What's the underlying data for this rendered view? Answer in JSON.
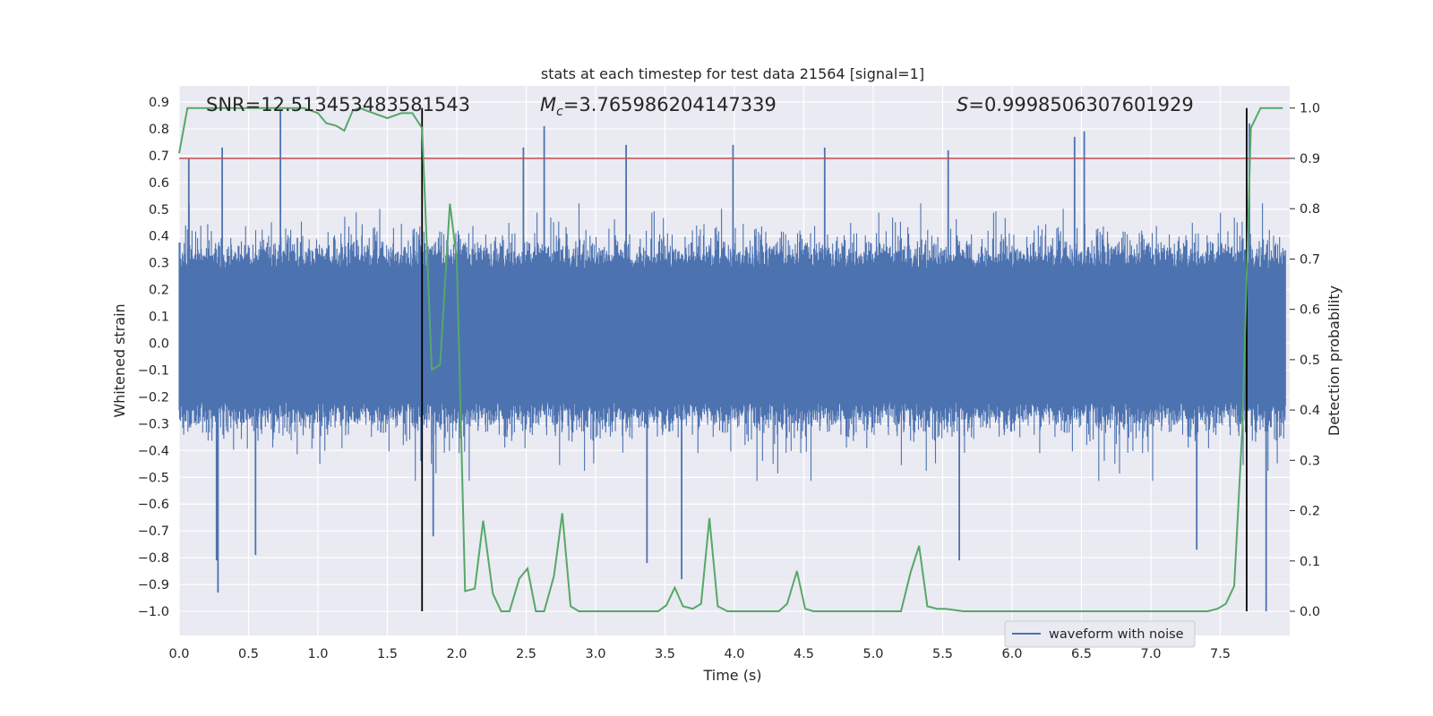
{
  "chart_data": {
    "type": "line",
    "title": "stats at each timestep for test data 21564 [signal=1]",
    "xlabel": "Time (s)",
    "ylabel": "Whitened strain",
    "y2label": "Detection probability",
    "xlim": [
      0.0,
      8.0
    ],
    "ylim": [
      -1.09,
      0.96
    ],
    "y2lim": [
      -0.048,
      1.044
    ],
    "xticks": [
      "0.0",
      "0.5",
      "1.0",
      "1.5",
      "2.0",
      "2.5",
      "3.0",
      "3.5",
      "4.0",
      "4.5",
      "5.0",
      "5.5",
      "6.0",
      "6.5",
      "7.0",
      "7.5"
    ],
    "yticks": [
      "0.9",
      "0.8",
      "0.7",
      "0.6",
      "0.5",
      "0.4",
      "0.3",
      "0.2",
      "0.1",
      "0.0",
      "-0.1",
      "-0.2",
      "-0.3",
      "-0.4",
      "-0.5",
      "-0.6",
      "-0.7",
      "-0.8",
      "-0.9",
      "-1.0"
    ],
    "y2ticks": [
      "1.0",
      "0.9",
      "0.8",
      "0.7",
      "0.6",
      "0.5",
      "0.4",
      "0.3",
      "0.2",
      "0.1",
      "0.0"
    ],
    "annotations": {
      "snr_text": "SNR=12.513453483581543",
      "mc_symbol": "M",
      "mc_sub": "c",
      "mc_value": "=3.765986204147339",
      "s_symbol": "S",
      "s_value": "=0.9998506307601929"
    },
    "threshold": {
      "value": 0.9,
      "axis": "y2",
      "color": "#c44e52"
    },
    "vlines": [
      1.75,
      7.69
    ],
    "series": [
      {
        "name": "waveform with noise",
        "axis": "y",
        "color": "#4c72b0",
        "kind": "dense noise waveform",
        "approx_band": [
          -0.45,
          0.55
        ],
        "notable_peaks": [
          {
            "x": 0.07,
            "y": 0.69
          },
          {
            "x": 0.31,
            "y": 0.73
          },
          {
            "x": 0.73,
            "y": 0.87
          },
          {
            "x": 2.63,
            "y": 0.81
          },
          {
            "x": 2.48,
            "y": 0.73
          },
          {
            "x": 3.22,
            "y": 0.74
          },
          {
            "x": 3.99,
            "y": 0.74
          },
          {
            "x": 4.65,
            "y": 0.73
          },
          {
            "x": 5.54,
            "y": 0.72
          },
          {
            "x": 6.45,
            "y": 0.77
          },
          {
            "x": 6.52,
            "y": 0.79
          },
          {
            "x": 7.71,
            "y": 0.82
          },
          {
            "x": 0.27,
            "y": -0.81
          },
          {
            "x": 0.28,
            "y": -0.93
          },
          {
            "x": 0.55,
            "y": -0.79
          },
          {
            "x": 1.83,
            "y": -0.72
          },
          {
            "x": 3.37,
            "y": -0.82
          },
          {
            "x": 3.62,
            "y": -0.88
          },
          {
            "x": 5.62,
            "y": -0.81
          },
          {
            "x": 7.33,
            "y": -0.77
          },
          {
            "x": 7.83,
            "y": -1.0
          }
        ]
      },
      {
        "name": "",
        "axis": "y2",
        "color": "#55a868",
        "x": [
          0.0,
          0.06,
          0.13,
          0.2,
          0.3,
          0.4,
          0.5,
          0.6,
          0.7,
          0.8,
          0.9,
          1.0,
          1.06,
          1.13,
          1.19,
          1.25,
          1.3,
          1.4,
          1.5,
          1.6,
          1.68,
          1.75,
          1.82,
          1.88,
          1.95,
          2.0,
          2.06,
          2.13,
          2.19,
          2.26,
          2.32,
          2.38,
          2.45,
          2.51,
          2.57,
          2.63,
          2.7,
          2.76,
          2.82,
          2.88,
          3.0,
          3.13,
          3.25,
          3.38,
          3.45,
          3.51,
          3.57,
          3.63,
          3.7,
          3.76,
          3.82,
          3.88,
          3.95,
          4.07,
          4.2,
          4.32,
          4.38,
          4.45,
          4.51,
          4.57,
          4.7,
          4.83,
          4.95,
          5.08,
          5.2,
          5.27,
          5.33,
          5.39,
          5.46,
          5.52,
          5.65,
          5.9,
          6.15,
          6.4,
          6.66,
          6.91,
          7.03,
          7.16,
          7.29,
          7.41,
          7.48,
          7.54,
          7.6,
          7.66,
          7.72,
          7.79,
          7.85,
          7.95
        ],
        "y": [
          0.91,
          1.0,
          1.0,
          1.0,
          1.0,
          1.0,
          1.0,
          1.0,
          1.0,
          1.0,
          1.0,
          0.99,
          0.97,
          0.965,
          0.955,
          0.995,
          1.0,
          0.99,
          0.98,
          0.99,
          0.99,
          0.96,
          0.48,
          0.49,
          0.81,
          0.7,
          0.04,
          0.045,
          0.18,
          0.035,
          0.0,
          0.0,
          0.065,
          0.085,
          0.0,
          0.0,
          0.07,
          0.195,
          0.01,
          0.0,
          0.0,
          0.0,
          0.0,
          0.0,
          0.0,
          0.012,
          0.047,
          0.01,
          0.005,
          0.015,
          0.185,
          0.01,
          0.0,
          0.0,
          0.0,
          0.0,
          0.015,
          0.08,
          0.005,
          0.0,
          0.0,
          0.0,
          0.0,
          0.0,
          0.0,
          0.078,
          0.13,
          0.01,
          0.005,
          0.005,
          0.0,
          0.0,
          0.0,
          0.0,
          0.0,
          0.0,
          0.0,
          0.0,
          0.0,
          0.0,
          0.005,
          0.015,
          0.05,
          0.37,
          0.96,
          1.0,
          1.0,
          1.0
        ]
      }
    ],
    "legend": {
      "placement": "lower-right",
      "entries": [
        "waveform with noise"
      ]
    },
    "grid": true,
    "colors": {
      "background": "#eaeaf2",
      "grid": "#ffffff",
      "waveform": "#4c72b0",
      "probability": "#55a868",
      "threshold": "#c44e52",
      "vline": "#000000"
    }
  }
}
